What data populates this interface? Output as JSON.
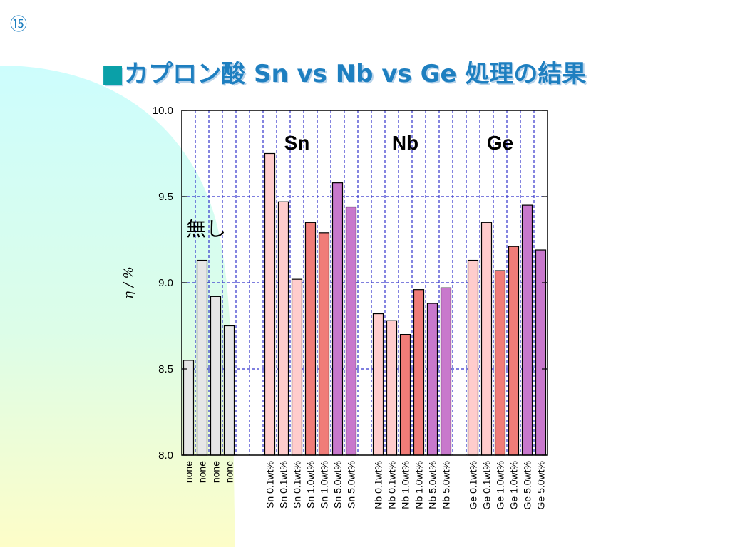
{
  "slide": {
    "number": "⑮"
  },
  "title": {
    "bullet": "■",
    "text": "カプロン酸 Sn vs Nb vs Ge 処理の結果"
  },
  "colors": {
    "none": "#e6e6e6",
    "light_pink": "#ffcccc",
    "coral": "#f07c78",
    "purple": "#c878cc",
    "grid": "#3333cc",
    "bg_cyan": "#cdfdfd",
    "bg_yellow": "#fdfdc8"
  },
  "chart_data": {
    "type": "bar",
    "ylabel": "η / %",
    "ylim": [
      8.0,
      10.0
    ],
    "yticks": [
      "8.0",
      "8.5",
      "9.0",
      "9.5",
      "10.0"
    ],
    "grid": true,
    "categories": [
      "none",
      "none",
      "none",
      "none",
      "",
      "",
      "Sn 0.1wt%",
      "Sn 0.1wt%",
      "Sn 0.1wt%",
      "Sn 1.0wt%",
      "Sn 1.0wt%",
      "Sn 5.0wt%",
      "Sn 5.0wt%",
      "",
      "Nb 0.1wt%",
      "Nb 0.1wt%",
      "Nb 1.0wt%",
      "Nb 1.0wt%",
      "Nb 5.0wt%",
      "Nb 5.0wt%",
      "",
      "Ge 0.1wt%",
      "Ge 0.1wt%",
      "Ge 1.0wt%",
      "Ge 1.0wt%",
      "Ge 5.0wt%",
      "Ge 5.0wt%"
    ],
    "values": [
      8.55,
      9.13,
      8.92,
      8.75,
      null,
      null,
      9.75,
      9.47,
      9.02,
      9.35,
      9.29,
      9.58,
      9.44,
      null,
      8.82,
      8.78,
      8.7,
      8.96,
      8.88,
      8.97,
      null,
      9.13,
      9.35,
      9.07,
      9.21,
      9.45,
      9.19
    ],
    "bar_colors": [
      "none",
      "none",
      "none",
      "none",
      "",
      "",
      "light_pink",
      "light_pink",
      "light_pink",
      "coral",
      "coral",
      "purple",
      "purple",
      "",
      "light_pink",
      "light_pink",
      "coral",
      "coral",
      "purple",
      "purple",
      "",
      "light_pink",
      "light_pink",
      "coral",
      "coral",
      "purple",
      "purple"
    ],
    "group_labels": [
      {
        "text": "Sn",
        "center_index": 8
      },
      {
        "text": "Nb",
        "center_index": 16
      },
      {
        "text": "Ge",
        "center_index": 23
      }
    ],
    "annotations": [
      {
        "text": "無し"
      }
    ]
  }
}
